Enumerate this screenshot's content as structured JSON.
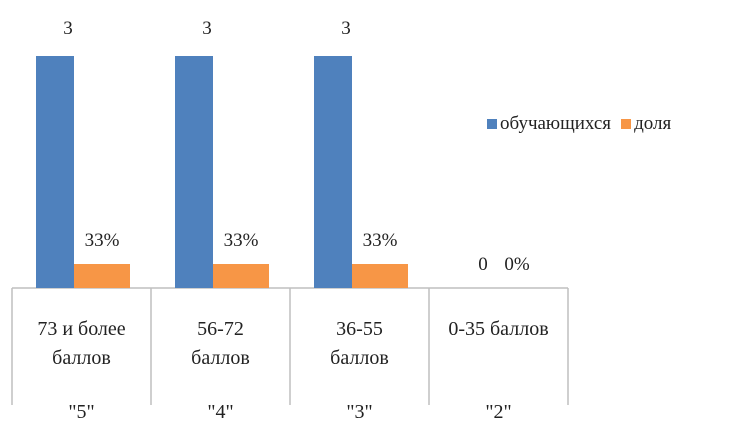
{
  "chart_data": {
    "type": "bar",
    "categories": [
      [
        "73  и более",
        "баллов",
        "\"5\""
      ],
      [
        "56-72",
        "баллов",
        "\"4\""
      ],
      [
        "36-55",
        "баллов",
        "\"3\""
      ],
      [
        "0-35  баллов",
        "",
        "\"2\""
      ]
    ],
    "series": [
      {
        "name": "обучающихся",
        "values": [
          3,
          3,
          3,
          0
        ],
        "labels": [
          "3",
          "3",
          "3",
          "0"
        ],
        "color": "#4f81bd"
      },
      {
        "name": "доля",
        "values": [
          0.33,
          0.33,
          0.33,
          0
        ],
        "labels": [
          "33%",
          "33%",
          "33%",
          "0%"
        ],
        "color": "#f79646"
      }
    ],
    "legend_position": "right",
    "grid": false
  }
}
